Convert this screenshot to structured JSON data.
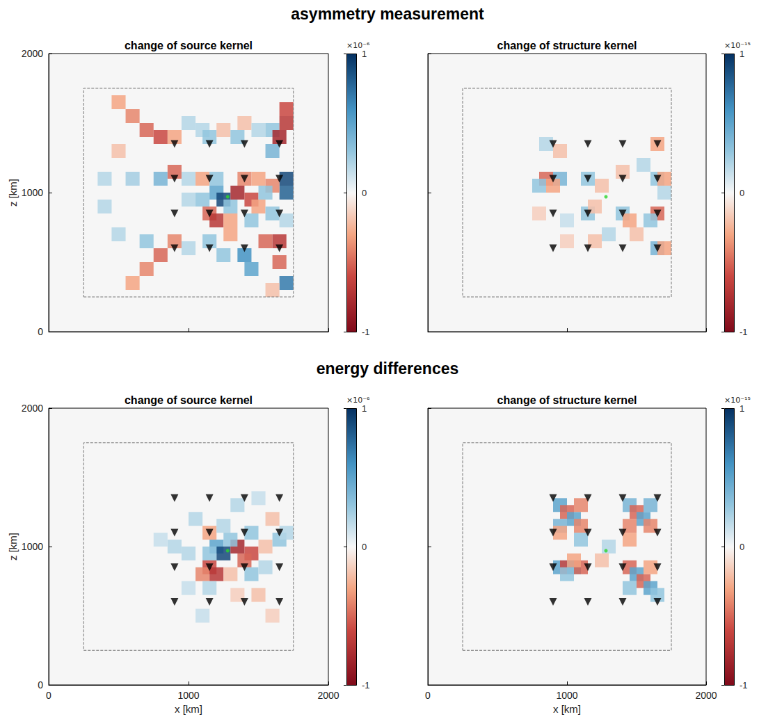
{
  "headings": [
    "asymmetry measurement",
    "energy differences"
  ],
  "chart_data": [
    {
      "type": "heatmap",
      "title": "change of source kernel",
      "ylabel": "z [km]",
      "xlim": [
        0,
        2000
      ],
      "ylim": [
        0,
        2000
      ],
      "xticks": [
        0,
        1000,
        2000
      ],
      "yticks": [
        0,
        1000,
        2000
      ],
      "tick_labels": "y",
      "cell_size": 100,
      "colorbar": {
        "range": [
          -1,
          1
        ],
        "ticks": [
          -1,
          0,
          1
        ],
        "label": "×10⁻⁶"
      },
      "box": {
        "xlim": [
          250,
          1750
        ],
        "ylim": [
          250,
          1750
        ]
      },
      "receivers": [
        [
          900,
          600
        ],
        [
          1150,
          600
        ],
        [
          1400,
          600
        ],
        [
          1650,
          600
        ],
        [
          900,
          850
        ],
        [
          1150,
          850
        ],
        [
          1400,
          850
        ],
        [
          1650,
          850
        ],
        [
          900,
          1100
        ],
        [
          1150,
          1100
        ],
        [
          1400,
          1100
        ],
        [
          1650,
          1100
        ],
        [
          900,
          1350
        ],
        [
          1150,
          1350
        ],
        [
          1400,
          1350
        ],
        [
          1650,
          1350
        ]
      ],
      "source": [
        1280,
        970
      ],
      "cells": [
        [
          500,
          1650,
          -0.3
        ],
        [
          600,
          1550,
          -0.4
        ],
        [
          700,
          1450,
          -0.5
        ],
        [
          800,
          1400,
          -0.6
        ],
        [
          900,
          1400,
          -0.3
        ],
        [
          1000,
          1500,
          0.2
        ],
        [
          1100,
          1450,
          0.2
        ],
        [
          1150,
          1400,
          0.3
        ],
        [
          1250,
          1450,
          -0.2
        ],
        [
          1350,
          1400,
          0.3
        ],
        [
          1400,
          1500,
          -0.2
        ],
        [
          1500,
          1450,
          0.2
        ],
        [
          1600,
          1450,
          0.3
        ],
        [
          1700,
          1600,
          -0.6
        ],
        [
          1700,
          1500,
          -0.7
        ],
        [
          1650,
          1400,
          -0.8
        ],
        [
          1600,
          1300,
          0.4
        ],
        [
          400,
          1100,
          0.2
        ],
        [
          600,
          1100,
          0.25
        ],
        [
          800,
          1100,
          0.4
        ],
        [
          900,
          1150,
          -0.5
        ],
        [
          1000,
          1100,
          0.2
        ],
        [
          1100,
          1100,
          -0.3
        ],
        [
          1200,
          1100,
          0.3
        ],
        [
          1400,
          1100,
          -0.4
        ],
        [
          1500,
          1100,
          -0.3
        ],
        [
          1700,
          1100,
          0.9
        ],
        [
          1700,
          1000,
          0.8
        ],
        [
          1600,
          1050,
          -0.4
        ],
        [
          1000,
          950,
          0.2
        ],
        [
          1100,
          950,
          0.3
        ],
        [
          1200,
          1000,
          0.5
        ],
        [
          1250,
          950,
          0.9
        ],
        [
          1350,
          1000,
          -0.8
        ],
        [
          1450,
          950,
          -0.6
        ],
        [
          1500,
          900,
          -0.3
        ],
        [
          1550,
          1000,
          0.3
        ],
        [
          1300,
          900,
          0.3
        ],
        [
          1150,
          850,
          -0.5
        ],
        [
          1200,
          800,
          -0.7
        ],
        [
          1300,
          800,
          -0.3
        ],
        [
          1450,
          800,
          0.3
        ],
        [
          1600,
          850,
          0.3
        ],
        [
          1700,
          800,
          0.2
        ],
        [
          500,
          700,
          0.2
        ],
        [
          700,
          650,
          0.3
        ],
        [
          900,
          650,
          -0.4
        ],
        [
          800,
          550,
          -0.5
        ],
        [
          700,
          450,
          -0.4
        ],
        [
          600,
          350,
          -0.3
        ],
        [
          1000,
          600,
          0.2
        ],
        [
          1150,
          650,
          0.3
        ],
        [
          1250,
          550,
          0.3
        ],
        [
          1400,
          550,
          0.6
        ],
        [
          1450,
          450,
          0.5
        ],
        [
          1550,
          650,
          -0.5
        ],
        [
          1650,
          650,
          -0.7
        ],
        [
          1650,
          500,
          -0.5
        ],
        [
          1700,
          350,
          0.7
        ],
        [
          1600,
          300,
          -0.2
        ],
        [
          1300,
          700,
          -0.3
        ],
        [
          400,
          900,
          0.2
        ],
        [
          500,
          1300,
          -0.2
        ]
      ]
    },
    {
      "type": "heatmap",
      "title": "change of structure kernel",
      "xlim": [
        0,
        2000
      ],
      "ylim": [
        0,
        2000
      ],
      "xticks": [
        0,
        1000,
        2000
      ],
      "yticks": [
        0,
        1000,
        2000
      ],
      "tick_labels": false,
      "cell_size": 100,
      "colorbar": {
        "range": [
          -1,
          1
        ],
        "ticks": [
          -1,
          0,
          1
        ],
        "label": "×10⁻¹⁵"
      },
      "box": {
        "xlim": [
          250,
          1750
        ],
        "ylim": [
          250,
          1750
        ]
      },
      "receivers": [
        [
          900,
          600
        ],
        [
          1150,
          600
        ],
        [
          1400,
          600
        ],
        [
          1650,
          600
        ],
        [
          900,
          850
        ],
        [
          1150,
          850
        ],
        [
          1400,
          850
        ],
        [
          1650,
          850
        ],
        [
          900,
          1100
        ],
        [
          1150,
          1100
        ],
        [
          1400,
          1100
        ],
        [
          1650,
          1100
        ],
        [
          900,
          1350
        ],
        [
          1150,
          1350
        ],
        [
          1400,
          1350
        ],
        [
          1650,
          1350
        ]
      ],
      "source": [
        1280,
        970
      ],
      "cells": [
        [
          850,
          1100,
          -0.5
        ],
        [
          950,
          1100,
          0.4
        ],
        [
          800,
          1050,
          0.3
        ],
        [
          900,
          1050,
          -0.3
        ],
        [
          850,
          1350,
          0.2
        ],
        [
          950,
          1300,
          -0.2
        ],
        [
          1150,
          1100,
          0.3
        ],
        [
          1250,
          1050,
          -0.2
        ],
        [
          1400,
          1150,
          -0.2
        ],
        [
          1650,
          1350,
          -0.3
        ],
        [
          1650,
          1100,
          0.3
        ],
        [
          1700,
          1100,
          -0.3
        ],
        [
          1150,
          850,
          0.3
        ],
        [
          1200,
          900,
          -0.2
        ],
        [
          1400,
          850,
          0.3
        ],
        [
          1450,
          800,
          -0.3
        ],
        [
          1650,
          850,
          -0.5
        ],
        [
          1600,
          800,
          0.3
        ],
        [
          1300,
          700,
          0.2
        ],
        [
          1200,
          650,
          -0.2
        ],
        [
          1500,
          700,
          -0.2
        ],
        [
          1650,
          600,
          0.4
        ],
        [
          1700,
          600,
          -0.3
        ],
        [
          1000,
          800,
          0.15
        ],
        [
          800,
          850,
          -0.15
        ],
        [
          1550,
          1200,
          0.2
        ],
        [
          1000,
          650,
          -0.15
        ],
        [
          1700,
          1000,
          0.2
        ]
      ]
    },
    {
      "type": "heatmap",
      "title": "change of source kernel",
      "xlabel": "x [km]",
      "ylabel": "z [km]",
      "xlim": [
        0,
        2000
      ],
      "ylim": [
        0,
        2000
      ],
      "xticks": [
        0,
        1000,
        2000
      ],
      "yticks": [
        0,
        1000,
        2000
      ],
      "tick_labels": true,
      "cell_size": 100,
      "colorbar": {
        "range": [
          -1,
          1
        ],
        "ticks": [
          -1,
          0,
          1
        ],
        "label": "×10⁻⁶"
      },
      "box": {
        "xlim": [
          250,
          1750
        ],
        "ylim": [
          250,
          1750
        ]
      },
      "receivers": [
        [
          900,
          600
        ],
        [
          1150,
          600
        ],
        [
          1400,
          600
        ],
        [
          1650,
          600
        ],
        [
          900,
          850
        ],
        [
          1150,
          850
        ],
        [
          1400,
          850
        ],
        [
          1650,
          850
        ],
        [
          900,
          1100
        ],
        [
          1150,
          1100
        ],
        [
          1400,
          1100
        ],
        [
          1650,
          1100
        ],
        [
          900,
          1350
        ],
        [
          1150,
          1350
        ],
        [
          1400,
          1350
        ],
        [
          1650,
          1350
        ]
      ],
      "source": [
        1280,
        970
      ],
      "cells": [
        [
          1200,
          1000,
          0.5
        ],
        [
          1250,
          950,
          0.9
        ],
        [
          1150,
          950,
          0.3
        ],
        [
          1350,
          1000,
          -0.8
        ],
        [
          1450,
          950,
          -0.6
        ],
        [
          1400,
          900,
          -0.5
        ],
        [
          1150,
          850,
          -0.6
        ],
        [
          1200,
          800,
          -0.7
        ],
        [
          1100,
          800,
          -0.4
        ],
        [
          1300,
          800,
          -0.2
        ],
        [
          1300,
          1050,
          0.3
        ],
        [
          1150,
          1100,
          -0.3
        ],
        [
          1250,
          1150,
          0.2
        ],
        [
          1450,
          1100,
          0.3
        ],
        [
          1550,
          1000,
          -0.2
        ],
        [
          1650,
          1050,
          0.3
        ],
        [
          1700,
          1100,
          0.2
        ],
        [
          1450,
          800,
          0.3
        ],
        [
          1550,
          850,
          0.2
        ],
        [
          1000,
          950,
          0.2
        ],
        [
          900,
          1000,
          0.2
        ],
        [
          800,
          1050,
          0.15
        ],
        [
          1050,
          1200,
          0.2
        ],
        [
          1350,
          1300,
          0.2
        ],
        [
          1500,
          1350,
          0.15
        ],
        [
          1150,
          700,
          0.2
        ],
        [
          1000,
          700,
          0.15
        ],
        [
          1350,
          650,
          -0.15
        ],
        [
          1500,
          650,
          -0.2
        ],
        [
          1600,
          500,
          -0.15
        ],
        [
          1100,
          500,
          0.15
        ],
        [
          1600,
          1200,
          -0.2
        ]
      ]
    },
    {
      "type": "heatmap",
      "title": "change of structure kernel",
      "xlabel": "x [km]",
      "xlim": [
        0,
        2000
      ],
      "ylim": [
        0,
        2000
      ],
      "xticks": [
        0,
        1000,
        2000
      ],
      "yticks": [
        0,
        1000,
        2000
      ],
      "tick_labels": "x",
      "cell_size": 100,
      "colorbar": {
        "range": [
          -1,
          1
        ],
        "ticks": [
          -1,
          0,
          1
        ],
        "label": "×10⁻¹⁵"
      },
      "box": {
        "xlim": [
          250,
          1750
        ],
        "ylim": [
          250,
          1750
        ]
      },
      "receivers": [
        [
          900,
          600
        ],
        [
          1150,
          600
        ],
        [
          1400,
          600
        ],
        [
          1650,
          600
        ],
        [
          900,
          850
        ],
        [
          1150,
          850
        ],
        [
          1400,
          850
        ],
        [
          1650,
          850
        ],
        [
          900,
          1100
        ],
        [
          1150,
          1100
        ],
        [
          1400,
          1100
        ],
        [
          1650,
          1100
        ],
        [
          900,
          1350
        ],
        [
          1150,
          1350
        ],
        [
          1400,
          1350
        ],
        [
          1650,
          1350
        ]
      ],
      "source": [
        1280,
        970
      ],
      "cells": [
        [
          950,
          1300,
          0.5
        ],
        [
          1000,
          1250,
          -0.5
        ],
        [
          1050,
          1200,
          0.5
        ],
        [
          1100,
          1150,
          -0.4
        ],
        [
          1100,
          1300,
          -0.4
        ],
        [
          950,
          1150,
          0.4
        ],
        [
          1450,
          1300,
          0.4
        ],
        [
          1500,
          1250,
          -0.5
        ],
        [
          1550,
          1200,
          0.5
        ],
        [
          1600,
          1150,
          -0.4
        ],
        [
          1450,
          1150,
          -0.4
        ],
        [
          1600,
          1300,
          0.4
        ],
        [
          950,
          850,
          0.5
        ],
        [
          1000,
          850,
          -0.6
        ],
        [
          1050,
          850,
          0.6
        ],
        [
          1100,
          850,
          -0.5
        ],
        [
          1000,
          800,
          0.3
        ],
        [
          1050,
          900,
          -0.3
        ],
        [
          1450,
          850,
          -0.5
        ],
        [
          1500,
          800,
          0.5
        ],
        [
          1550,
          750,
          -0.5
        ],
        [
          1600,
          700,
          0.5
        ],
        [
          1450,
          700,
          0.3
        ],
        [
          1600,
          850,
          -0.3
        ],
        [
          950,
          1100,
          -0.3
        ],
        [
          1100,
          1050,
          0.3
        ],
        [
          1450,
          1050,
          -0.3
        ],
        [
          1300,
          1000,
          0.2
        ],
        [
          1250,
          900,
          -0.2
        ],
        [
          1650,
          650,
          0.3
        ]
      ]
    }
  ]
}
